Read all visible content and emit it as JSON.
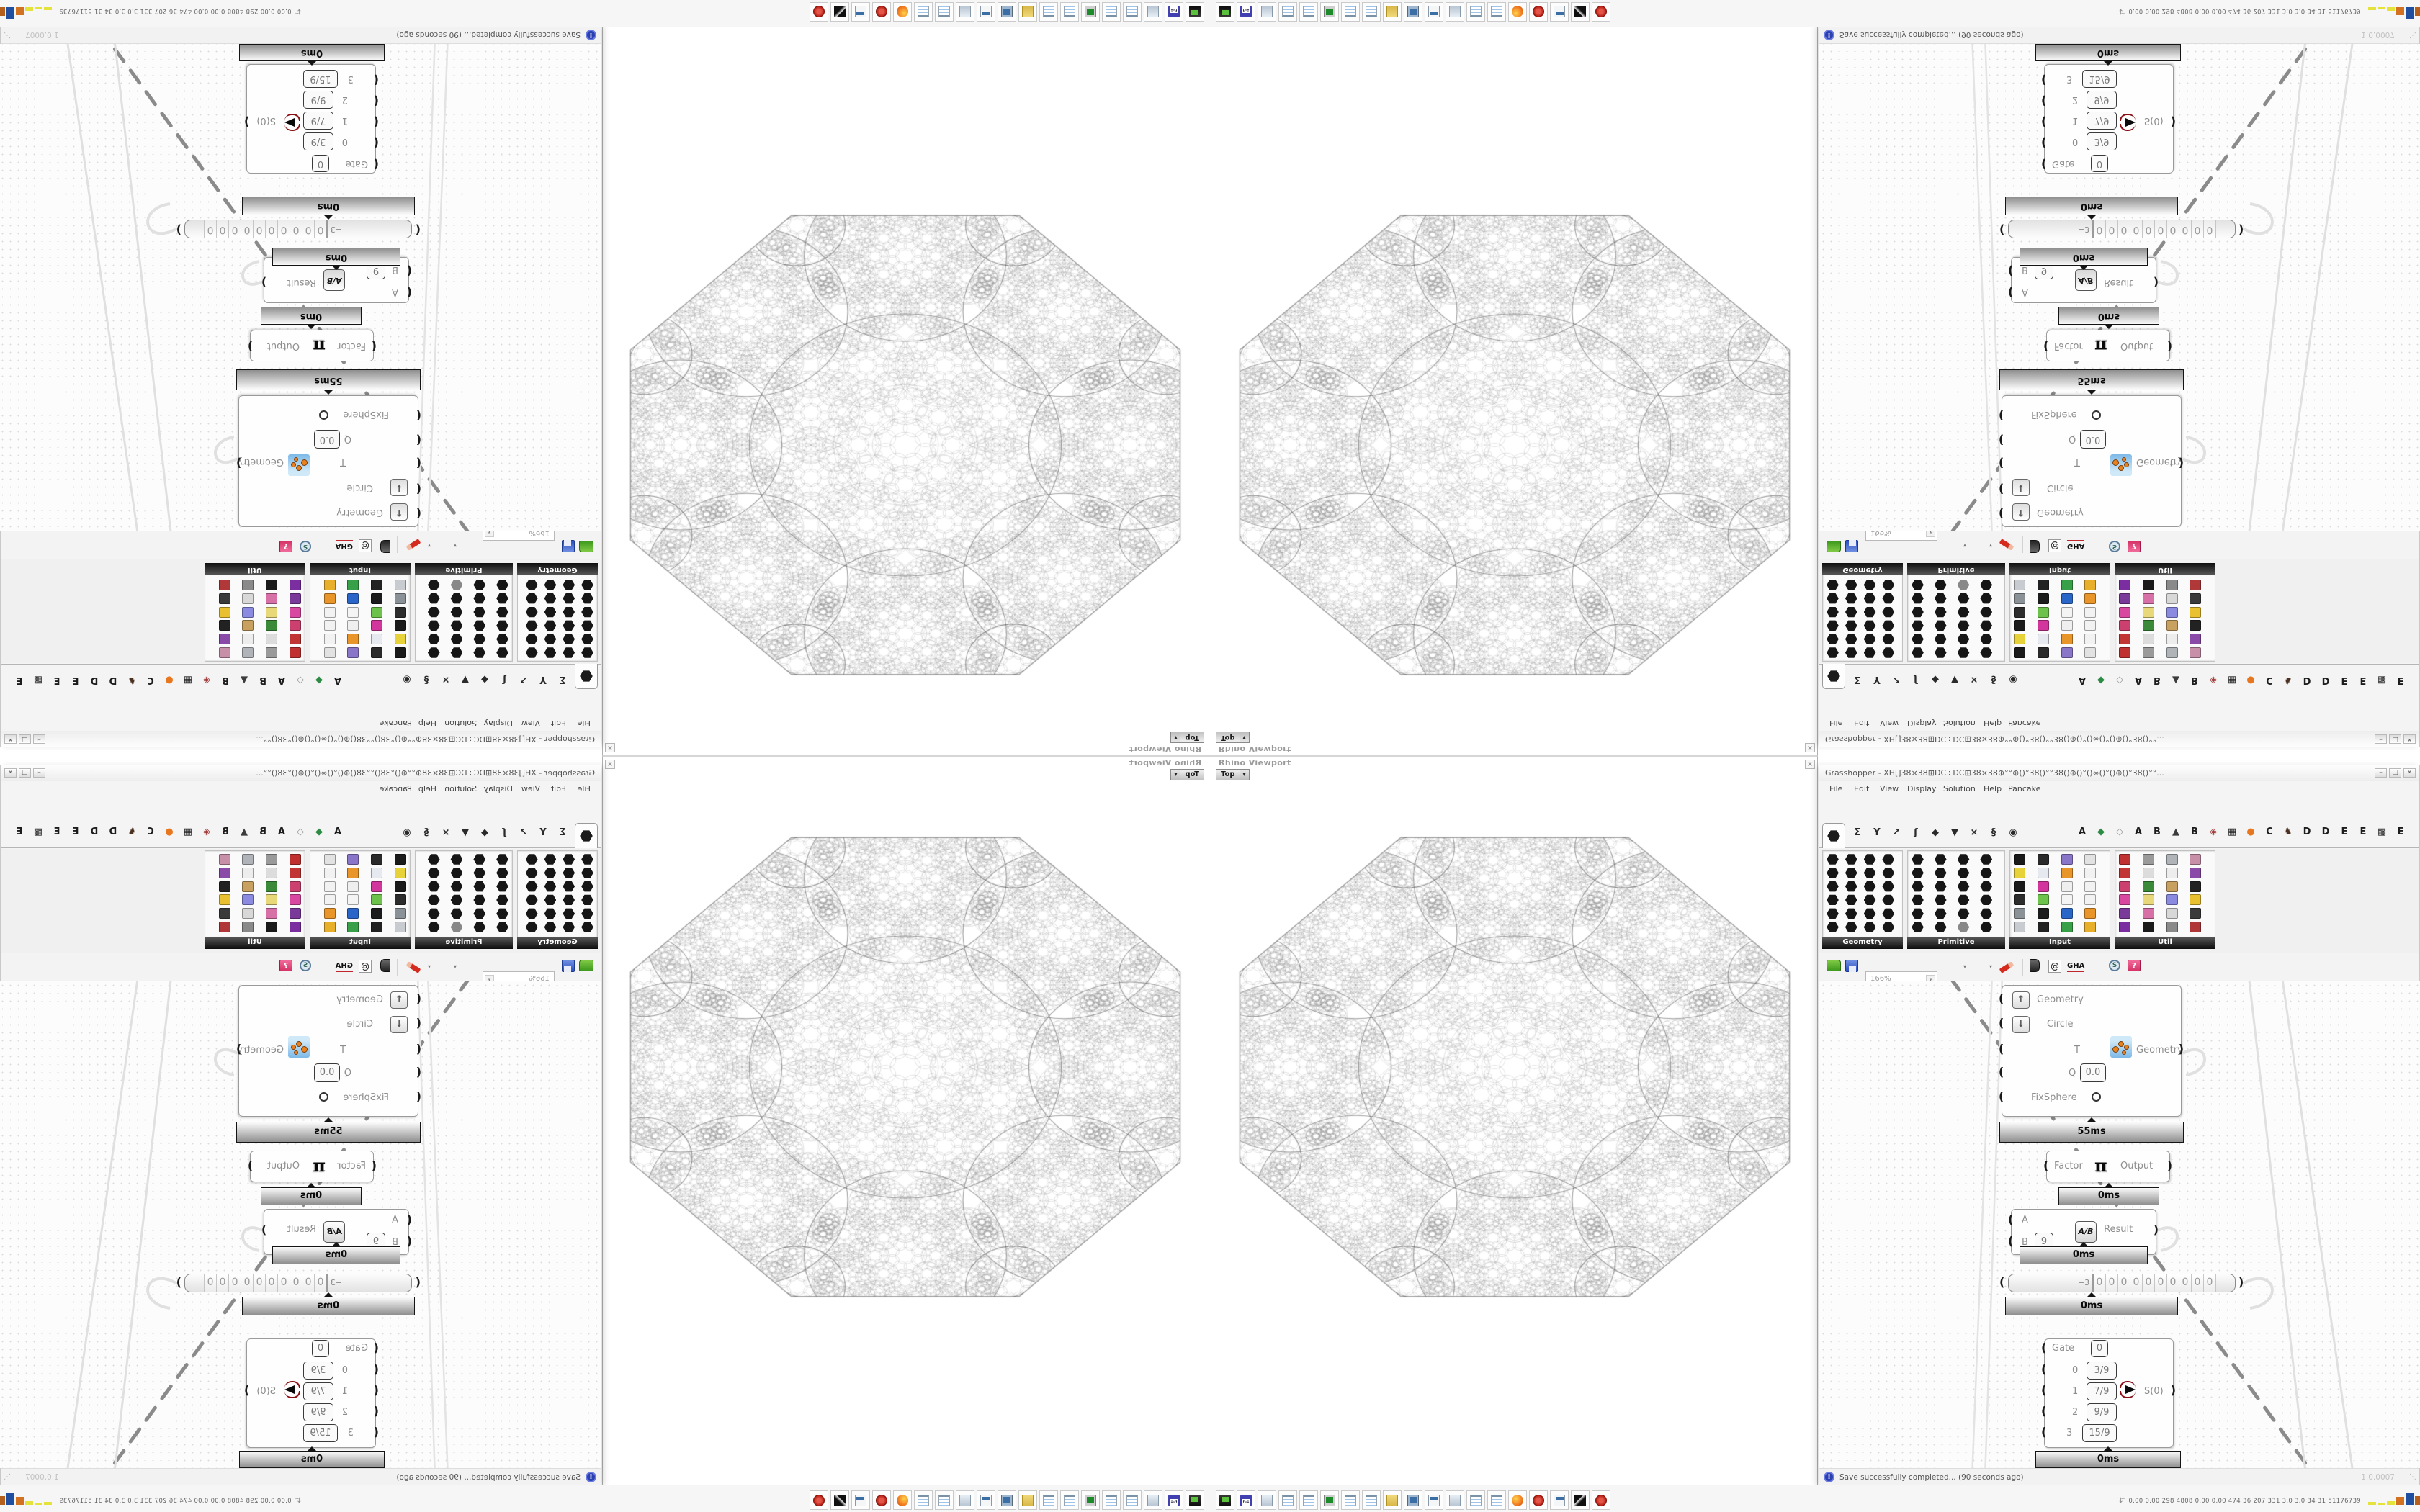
{
  "viewport": {
    "title": "Rhino Viewport",
    "view_tab": "Top",
    "dropdown_glyph": "▾",
    "close_glyph": "×"
  },
  "grasshopper": {
    "title": "Grasshopper - XH[]38×38⊞DC÷DC⊞38×38⊕°°⊕()°38()°°38()⊕()°()∞()°()⊕()°38()°°...",
    "window_buttons": [
      "–",
      "□",
      "×"
    ],
    "menus": [
      "File",
      "Edit",
      "View",
      "Display",
      "Solution",
      "Help",
      "Pancake"
    ],
    "param_tab_glyphs": [
      "Σ",
      "Y",
      "↗",
      "ʃ",
      "◆",
      "▼",
      "×",
      "§",
      "◉"
    ],
    "plugin_tabs": [
      {
        "label": "A",
        "color": "#1c1c1c"
      },
      {
        "label": "◆",
        "color": "#2e8b46"
      },
      {
        "label": "◇",
        "color": "#9a9a9a"
      },
      {
        "label": "A",
        "color": "#1c1c1c"
      },
      {
        "label": "B",
        "color": "#1c1c1c"
      },
      {
        "label": "▲",
        "color": "#3c3c3c"
      },
      {
        "label": "B",
        "color": "#1c1c1c"
      },
      {
        "label": "◈",
        "color": "#a03838"
      },
      {
        "label": "▦",
        "color": "#1c1c1c"
      },
      {
        "label": "●",
        "color": "#e8761e"
      },
      {
        "label": "C",
        "color": "#1c1c1c"
      },
      {
        "label": "♞",
        "color": "#4a3020"
      },
      {
        "label": "D",
        "color": "#1c1c1c"
      },
      {
        "label": "D",
        "color": "#1c1c1c"
      },
      {
        "label": "E",
        "color": "#1c1c1c"
      },
      {
        "label": "E",
        "color": "#1c1c1c"
      },
      {
        "label": "▩",
        "color": "#2a2a2a"
      },
      {
        "label": "E",
        "color": "#1c1c1c"
      }
    ],
    "palette_groups": [
      {
        "label": "Geometry",
        "style": "hex",
        "icons": [
          "#161616",
          "#161616",
          "#161616",
          "#161616",
          "#161616",
          "#161616",
          "#161616",
          "#161616",
          "#161616",
          "#161616",
          "#161616",
          "#161616",
          "#161616",
          "#161616",
          "#161616",
          "#161616",
          "#161616",
          "#161616",
          "#161616",
          "#161616",
          "#161616",
          "#161616",
          "#161616",
          "#161616"
        ]
      },
      {
        "label": "Primitive",
        "style": "hex",
        "icons": [
          "#161616",
          "#161616",
          "#161616",
          "#161616",
          "#161616",
          "#161616",
          "#161616",
          "#161616",
          "#161616",
          "#161616",
          "#161616",
          "#161616",
          "#161616",
          "#161616",
          "#161616",
          "#161616",
          "#161616",
          "#161616",
          "#161616",
          "#161616",
          "#161616",
          "#161616",
          "#888888",
          "#161616"
        ]
      },
      {
        "label": "Input",
        "style": "sq",
        "icons": [
          "#1a1a1a",
          "#2a2a2a",
          "#8a76c8",
          "#e2e2e2",
          "#e8d23a",
          "#e6eaf0",
          "#e8962a",
          "#f2f2f2",
          "#1a1a1a",
          "#d2359b",
          "#efefef",
          "#f2f2f2",
          "#2c2c2c",
          "#6cc24a",
          "#f4f4f4",
          "#f2f2f2",
          "#8a9298",
          "#1c1c1c",
          "#2a66c8",
          "#e8962a",
          "#c8ccd0",
          "#222222",
          "#38a048",
          "#e8b02a"
        ]
      },
      {
        "label": "Util",
        "style": "sq",
        "icons": [
          "#c03030",
          "#9a9a9a",
          "#b0b4b8",
          "#c890a8",
          "#c23535",
          "#dcdcdc",
          "#ededed",
          "#8a4aa8",
          "#cc4070",
          "#3a8a3a",
          "#c8a060",
          "#222222",
          "#d848a0",
          "#e8d87a",
          "#8a8ae0",
          "#e8c030",
          "#7a3a9a",
          "#d870a8",
          "#d8d8d8",
          "#3a3a3a",
          "#7a2ea0",
          "#1a1a1a",
          "#8a8a8a",
          "#b03838"
        ]
      }
    ],
    "toolbar": {
      "zoom_level": "166%",
      "at_glyph": "@",
      "gha_label": "GHA",
      "search_letter": "S",
      "gift_glyph": "?"
    },
    "canvas_nodes": {
      "fixsphere": {
        "in_geometry": "Geometry",
        "in_circle": "Circle",
        "in_t": "T",
        "in_q": "Q",
        "q_value": "0.0",
        "in_fixsphere": "FixSphere",
        "out_label": "Geometry",
        "time": "55ms"
      },
      "pi": {
        "in_label": "Factor",
        "symbol": "π",
        "out_label": "Output",
        "time": "0ms"
      },
      "division": {
        "in_a": "A",
        "in_b": "B",
        "b_value": "9",
        "icon_label": "A/B",
        "out_label": "Result",
        "time": "0ms"
      },
      "scroller": {
        "sign": "+3",
        "digits": [
          "0",
          "0",
          "0",
          "0",
          "0",
          "0",
          "0",
          "0",
          "0",
          "0"
        ],
        "time": "0ms"
      },
      "stream_filter": {
        "gate_label": "Gate",
        "gate_value": "0",
        "rows": [
          {
            "index": "0",
            "value": "3/9"
          },
          {
            "index": "1",
            "value": "7/9"
          },
          {
            "index": "2",
            "value": "9/9"
          },
          {
            "index": "3",
            "value": "15/9"
          }
        ],
        "output_row": 1,
        "out_label": "S(0)",
        "time": "0ms"
      }
    },
    "statusbar": {
      "message": "Save successfully completed... (90 seconds ago)",
      "version": "1.0.0007",
      "info_glyph": "!"
    }
  },
  "taskbar": {
    "icons": [
      "drive",
      "floppy64",
      "scroll",
      "notepad",
      "notepad",
      "monitor",
      "notepad",
      "notepad",
      "folder",
      "display",
      "calculator",
      "scroll",
      "notepad",
      "notepad",
      "firefox",
      "seal",
      "calculator",
      "inkart",
      "seal"
    ],
    "sysmon": {
      "arrow": "⇵",
      "values": "0.00 0.00  298 4808 0.00 0.00  474   36   207  331   3.0   3.0   34    31  51176739",
      "bars": [
        {
          "c": "#e6e23c",
          "h": 4
        },
        {
          "c": "#e6e23c",
          "h": 3
        },
        {
          "c": "#e6e23c",
          "h": 5
        },
        {
          "c": "#d2711f",
          "h": 11
        },
        {
          "c": "#1f4f9e",
          "h": 17
        },
        {
          "c": "#b55f1c",
          "h": 12
        },
        {
          "c": "#3fae49",
          "h": 4
        },
        {
          "c": "#cf3b33",
          "h": 7
        },
        {
          "c": "#3fae49",
          "h": 3
        }
      ]
    }
  },
  "colors": {
    "fractal_stroke": "#9a9a9a",
    "accent_blue": "#2a3fb0"
  }
}
